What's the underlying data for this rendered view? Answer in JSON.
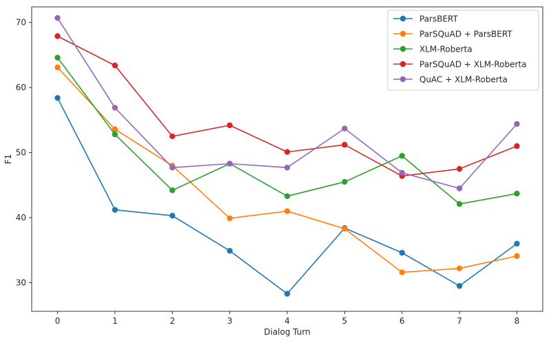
{
  "chart_data": {
    "type": "line",
    "title": "",
    "xlabel": "Dialog Turn",
    "ylabel": "F1",
    "x": [
      0,
      1,
      2,
      3,
      4,
      5,
      6,
      7,
      8
    ],
    "xlim": [
      -0.45,
      8.45
    ],
    "ylim": [
      25.6,
      72.4
    ],
    "yticks": [
      30,
      40,
      50,
      60,
      70
    ],
    "grid": false,
    "legend_position": "top-right",
    "series": [
      {
        "name": "ParsBERT",
        "color": "#1f77b4",
        "values": [
          58.4,
          41.2,
          40.3,
          34.9,
          28.3,
          38.4,
          34.6,
          29.5,
          36.0
        ]
      },
      {
        "name": "ParSQuAD + ParsBERT",
        "color": "#ff7f0e",
        "values": [
          63.1,
          53.6,
          48.0,
          39.9,
          41.0,
          38.3,
          31.6,
          32.2,
          34.1
        ]
      },
      {
        "name": "XLM-Roberta",
        "color": "#2ca02c",
        "values": [
          64.6,
          52.8,
          44.2,
          48.3,
          43.3,
          45.5,
          49.5,
          42.1,
          43.7
        ]
      },
      {
        "name": "ParSQuAD + XLM-Roberta",
        "color": "#d62728",
        "values": [
          67.9,
          63.4,
          52.5,
          54.2,
          50.1,
          51.2,
          46.4,
          47.5,
          51.0
        ]
      },
      {
        "name": "QuAC + XLM-Roberta",
        "color": "#9467bd",
        "values": [
          70.7,
          56.9,
          47.7,
          48.3,
          47.7,
          53.7,
          46.9,
          44.5,
          54.4
        ]
      }
    ]
  }
}
